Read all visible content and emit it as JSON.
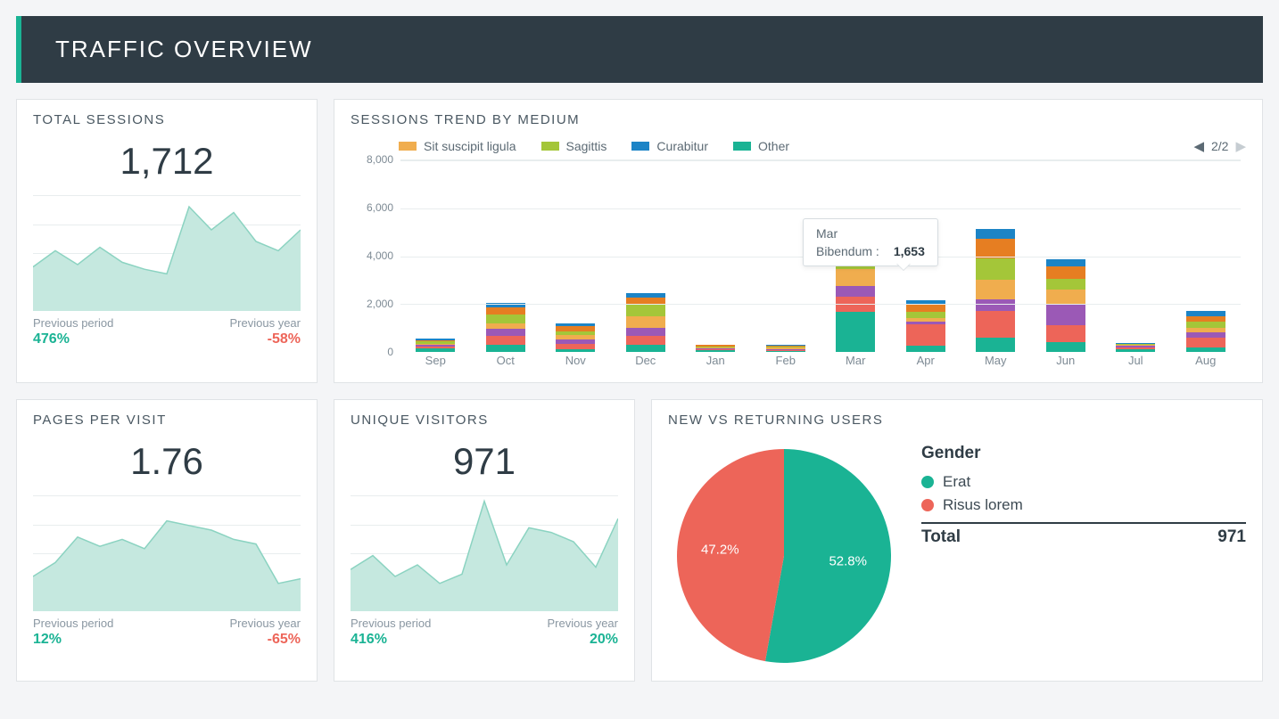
{
  "banner": {
    "title": "TRAFFIC OVERVIEW",
    "bg": "#2f3c45",
    "accent": "#1ab394"
  },
  "palette": {
    "green": "#1ab394",
    "red": "#ed6559",
    "grid": "#e8edee",
    "text_muted": "#8a97a2",
    "text": "#3d4a53"
  },
  "metrics": {
    "total_sessions": {
      "title": "TOTAL SESSIONS",
      "value": "1,712",
      "prev_period_label": "Previous period",
      "prev_period_value": "476%",
      "prev_period_color": "#1ab394",
      "prev_year_label": "Previous year",
      "prev_year_value": "-58%",
      "prev_year_color": "#ed6559",
      "spark": {
        "type": "area",
        "fill": "#c5e8df",
        "stroke": "#8bd3c1",
        "ylim": [
          0,
          100
        ],
        "gridlines": [
          25,
          50,
          75,
          100
        ],
        "points": [
          38,
          52,
          40,
          55,
          42,
          36,
          32,
          90,
          70,
          85,
          60,
          52,
          70
        ]
      }
    },
    "pages_per_visit": {
      "title": "PAGES PER VISIT",
      "value": "1.76",
      "prev_period_label": "Previous period",
      "prev_period_value": "12%",
      "prev_period_color": "#1ab394",
      "prev_year_label": "Previous year",
      "prev_year_value": "-65%",
      "prev_year_color": "#ed6559",
      "spark": {
        "type": "area",
        "fill": "#c5e8df",
        "stroke": "#8bd3c1",
        "ylim": [
          0,
          100
        ],
        "gridlines": [
          25,
          50,
          75,
          100
        ],
        "points": [
          30,
          42,
          64,
          56,
          62,
          54,
          78,
          74,
          70,
          62,
          58,
          24,
          28
        ]
      }
    },
    "unique_visitors": {
      "title": "UNIQUE VISITORS",
      "value": "971",
      "prev_period_label": "Previous period",
      "prev_period_value": "416%",
      "prev_period_color": "#1ab394",
      "prev_year_label": "Previous year",
      "prev_year_value": "20%",
      "prev_year_color": "#1ab394",
      "spark": {
        "type": "area",
        "fill": "#c5e8df",
        "stroke": "#8bd3c1",
        "ylim": [
          0,
          100
        ],
        "gridlines": [
          25,
          50,
          75,
          100
        ],
        "points": [
          36,
          48,
          30,
          40,
          24,
          32,
          95,
          40,
          72,
          68,
          60,
          38,
          80
        ]
      }
    }
  },
  "sessions_trend": {
    "title": "SESSIONS TREND BY MEDIUM",
    "type": "stacked-bar",
    "ylim": [
      0,
      8000
    ],
    "yticks": [
      0,
      2000,
      4000,
      6000,
      8000
    ],
    "ytick_labels": [
      "0",
      "2,000",
      "4,000",
      "6,000",
      "8,000"
    ],
    "pager": {
      "text": "2/2",
      "prev_enabled": true,
      "next_enabled": false
    },
    "legend": [
      {
        "label": "Sit suscipit ligula",
        "color": "#f0ad4e"
      },
      {
        "label": "Sagittis",
        "color": "#a4c639"
      },
      {
        "label": "Curabitur",
        "color": "#1c84c6"
      },
      {
        "label": "Other",
        "color": "#1ab394"
      }
    ],
    "series_colors": [
      "#1ab394",
      "#ed6559",
      "#9b59b6",
      "#f0ad4e",
      "#a4c639",
      "#e67e22",
      "#1c84c6"
    ],
    "categories": [
      "Sep",
      "Oct",
      "Nov",
      "Dec",
      "Jan",
      "Feb",
      "Mar",
      "Apr",
      "May",
      "Jun",
      "Jul",
      "Aug"
    ],
    "stacks": [
      [
        150,
        80,
        60,
        60,
        80,
        60,
        60
      ],
      [
        300,
        350,
        300,
        250,
        350,
        300,
        200
      ],
      [
        120,
        200,
        200,
        200,
        150,
        200,
        120
      ],
      [
        300,
        350,
        350,
        500,
        450,
        300,
        200
      ],
      [
        60,
        60,
        40,
        40,
        40,
        40,
        30
      ],
      [
        40,
        50,
        40,
        40,
        50,
        40,
        30
      ],
      [
        1653,
        650,
        450,
        700,
        900,
        600,
        450
      ],
      [
        250,
        900,
        100,
        150,
        250,
        350,
        150
      ],
      [
        600,
        1100,
        500,
        800,
        900,
        800,
        400
      ],
      [
        400,
        700,
        900,
        600,
        450,
        500,
        300
      ],
      [
        120,
        80,
        50,
        40,
        30,
        30,
        30
      ],
      [
        200,
        400,
        200,
        200,
        250,
        250,
        200
      ]
    ],
    "tooltip": {
      "month": "Mar",
      "series": "Bibendum :",
      "value": "1,653",
      "anchor_index": 6
    }
  },
  "pie": {
    "title": "NEW VS RETURNING USERS",
    "legend_title": "Gender",
    "total_label": "Total",
    "total_value": "971",
    "slices": [
      {
        "label": "Erat",
        "value": 52.8,
        "display": "52.8%",
        "color": "#1ab394"
      },
      {
        "label": "Risus lorem",
        "value": 47.2,
        "display": "47.2%",
        "color": "#ed6559"
      }
    ]
  }
}
